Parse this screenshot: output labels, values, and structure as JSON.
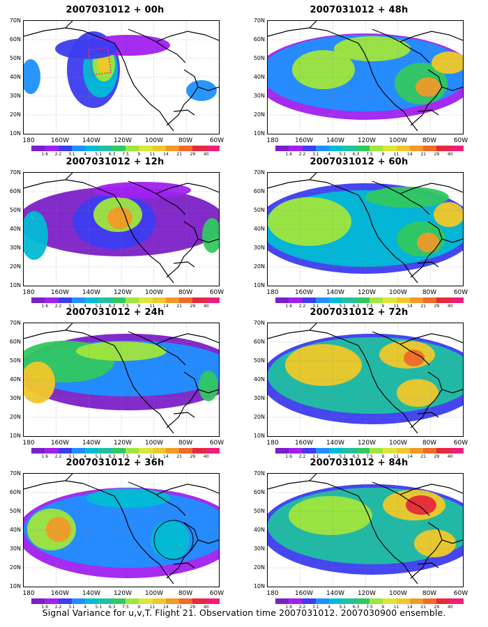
{
  "panels": [
    {
      "title": "2007031012 + 00h"
    },
    {
      "title": "2007031012 + 48h"
    },
    {
      "title": "2007031012 + 12h"
    },
    {
      "title": "2007031012 + 60h"
    },
    {
      "title": "2007031012 + 24h"
    },
    {
      "title": "2007031012 + 72h"
    },
    {
      "title": "2007031012 + 36h"
    },
    {
      "title": "2007031012 + 84h"
    }
  ],
  "lat_labels": [
    "70N",
    "60N",
    "50N",
    "40N",
    "30N",
    "20N",
    "10N"
  ],
  "lon_labels": [
    "180",
    "160W",
    "140W",
    "120W",
    "100W",
    "80W",
    "60W"
  ],
  "colorbar_labels": [
    "1.6",
    "2.2",
    "3.1",
    "4",
    "5.1",
    "6.3",
    "7.5",
    "9",
    "11",
    "14",
    "21",
    "29",
    "40"
  ],
  "colorbar_colors": [
    "#7c1fc8",
    "#a020f0",
    "#3c3cf0",
    "#1e90ff",
    "#00bcd4",
    "#20c0a0",
    "#30c860",
    "#a0e63c",
    "#dce63c",
    "#f0c828",
    "#f09a28",
    "#f06a28",
    "#e8283c",
    "#f01e78"
  ],
  "footer": "Signal Variance for u,v,T. Flight 21. Observation time 2007031012. 2007030900 ensemble."
}
